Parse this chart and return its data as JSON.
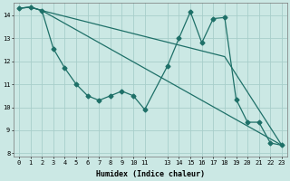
{
  "xlabel": "Humidex (Indice chaleur)",
  "background_color": "#cbe8e4",
  "grid_color": "#a8ceca",
  "line_color": "#1e7068",
  "line1_x": [
    0,
    1,
    2,
    3,
    4,
    5,
    6,
    7,
    8,
    9,
    10,
    11,
    13,
    14,
    15,
    16,
    17,
    18,
    19,
    20,
    21,
    22,
    23
  ],
  "line1_y": [
    14.3,
    14.35,
    14.2,
    12.55,
    11.7,
    11.0,
    10.5,
    10.3,
    10.5,
    10.7,
    10.5,
    9.9,
    11.8,
    13.0,
    14.15,
    12.8,
    13.85,
    13.9,
    10.35,
    9.35,
    9.35,
    8.45,
    8.35
  ],
  "line2_x": [
    0,
    1,
    2,
    23
  ],
  "line2_y": [
    14.3,
    14.35,
    14.2,
    8.35
  ],
  "line3_x": [
    0,
    1,
    2,
    18,
    23
  ],
  "line3_y": [
    14.3,
    14.35,
    14.2,
    12.2,
    8.35
  ],
  "xlim": [
    -0.5,
    23.5
  ],
  "ylim": [
    7.85,
    14.55
  ],
  "yticks": [
    8,
    9,
    10,
    11,
    12,
    13,
    14
  ],
  "ytick_labels": [
    "8",
    "9",
    "10",
    "11",
    "12",
    "13",
    "14"
  ],
  "xtick_pos": [
    0,
    1,
    2,
    3,
    4,
    5,
    6,
    7,
    8,
    9,
    10,
    11,
    13,
    14,
    15,
    16,
    17,
    18,
    19,
    20,
    21,
    22,
    23
  ],
  "xtick_labels": [
    "0",
    "1",
    "2",
    "3",
    "4",
    "5",
    "6",
    "7",
    "8",
    "9",
    "10",
    "11",
    "13",
    "14",
    "15",
    "16",
    "17",
    "18",
    "19",
    "20",
    "21",
    "22",
    "23"
  ],
  "markersize": 2.5,
  "linewidth": 0.9,
  "tick_fontsize": 5.0,
  "xlabel_fontsize": 6.0
}
